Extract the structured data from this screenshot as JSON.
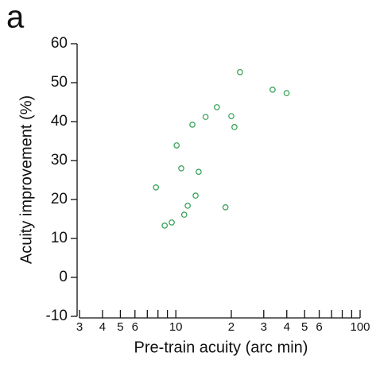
{
  "chart_data": {
    "type": "scatter",
    "title": "a",
    "x_label": "Pre-train acuity (arc min)",
    "y_label": "Acuity improvement (%)",
    "x_log": true,
    "xlim": [
      3,
      100
    ],
    "xticks": [
      3,
      4,
      5,
      6,
      10,
      {
        "value": 20,
        "label": "2"
      },
      {
        "value": 30,
        "label": "3"
      },
      {
        "value": 40,
        "label": "4"
      },
      {
        "value": 50,
        "label": "5"
      },
      {
        "value": 60,
        "label": "6"
      },
      100
    ],
    "xminor": [
      7,
      8,
      9,
      70,
      80,
      90
    ],
    "ylim": [
      -10,
      60
    ],
    "yticks": [
      -10,
      0,
      10,
      20,
      30,
      40,
      50,
      60
    ],
    "color": "#2e9e4f",
    "x": [
      7.8,
      8.7,
      9.5,
      10.1,
      10.7,
      11.1,
      11.6,
      12.3,
      12.8,
      13.3,
      14.5,
      16.7,
      18.6,
      20.0,
      20.8,
      22.3,
      33.5,
      39.9
    ],
    "values": [
      23.1,
      13.3,
      14.1,
      33.9,
      28.0,
      16.1,
      18.4,
      39.2,
      21.0,
      27.1,
      41.2,
      43.7,
      18.0,
      41.4,
      38.6,
      52.7,
      48.2,
      47.3
    ]
  }
}
